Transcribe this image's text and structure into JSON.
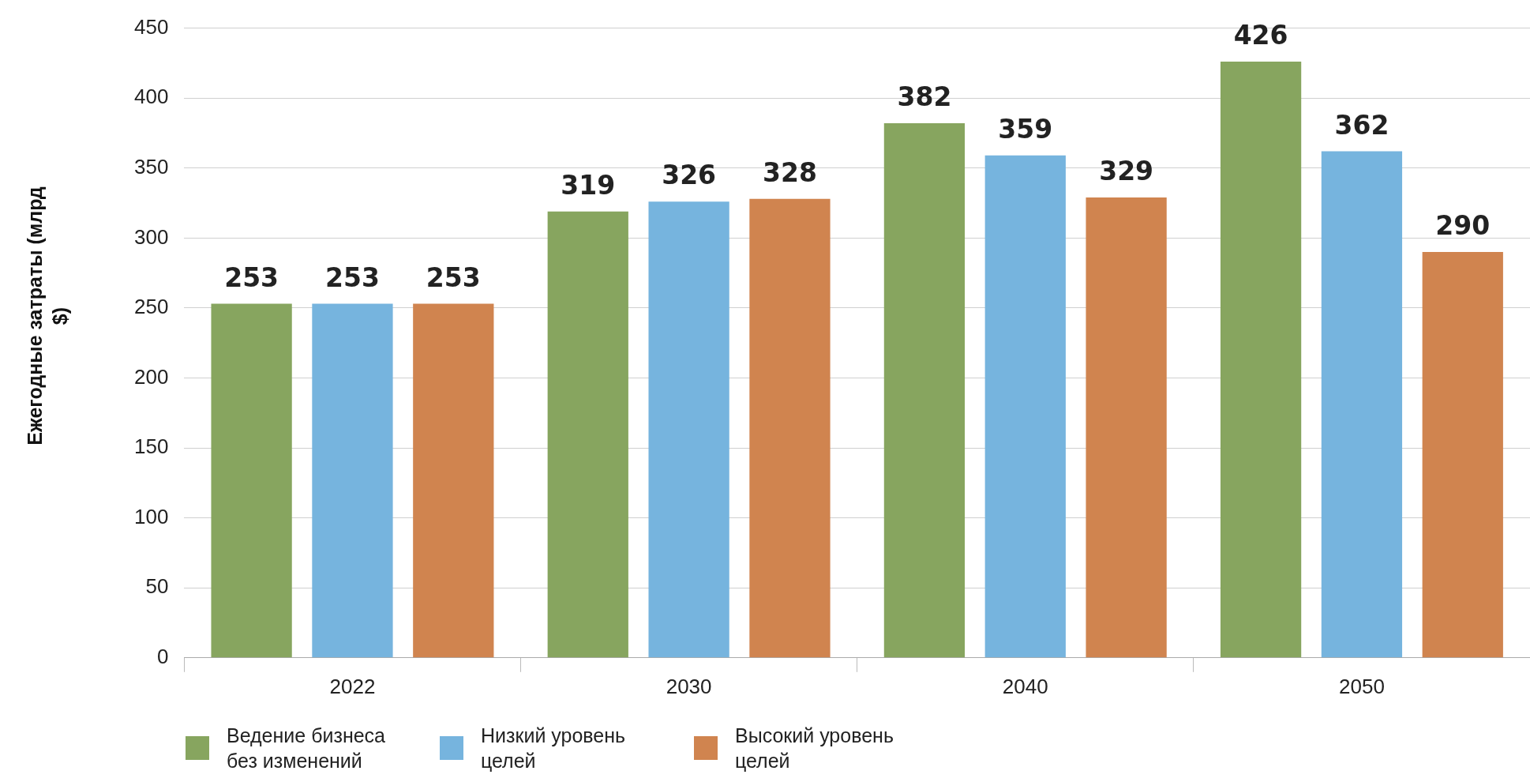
{
  "chart_data": {
    "type": "bar",
    "ylabel": "Ежегодные затраты (млрд $)",
    "categories": [
      "2022",
      "2030",
      "2040",
      "2050"
    ],
    "series": [
      {
        "name": "Ведение бизнеса без изменений",
        "color": "#87a55f",
        "values": [
          253,
          319,
          382,
          426
        ]
      },
      {
        "name": "Низкий уровень целей",
        "color": "#76b4de",
        "values": [
          253,
          326,
          359,
          362
        ]
      },
      {
        "name": "Высокий уровень целей",
        "color": "#d0844f",
        "values": [
          253,
          328,
          329,
          290
        ]
      }
    ],
    "ylim": [
      0,
      450
    ],
    "yticks": [
      0,
      50,
      100,
      150,
      200,
      250,
      300,
      350,
      400,
      450
    ],
    "grid": "y",
    "legend": "bottom",
    "data_labels": true
  }
}
